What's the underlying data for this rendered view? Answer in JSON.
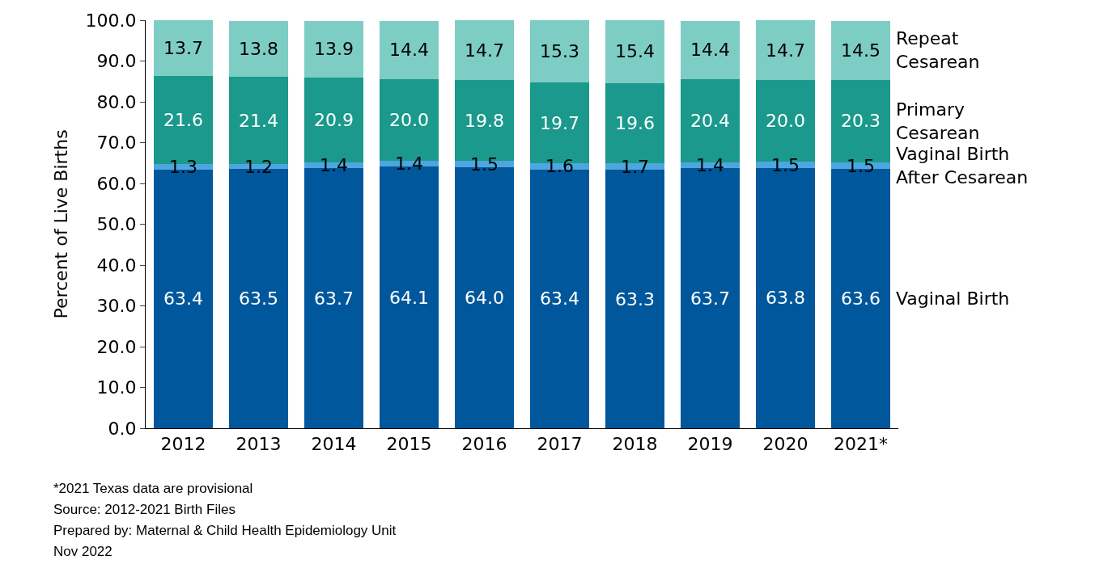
{
  "chart_data": {
    "type": "bar",
    "stacked": true,
    "ylabel": "Percent of Live Births",
    "categories": [
      "2012",
      "2013",
      "2014",
      "2015",
      "2016",
      "2017",
      "2018",
      "2019",
      "2020",
      "2021*"
    ],
    "series": [
      {
        "name": "Vaginal Birth",
        "color": "#00579b",
        "values": [
          63.4,
          63.5,
          63.7,
          64.1,
          64.0,
          63.4,
          63.3,
          63.7,
          63.8,
          63.6
        ],
        "value_labels": [
          "63.4",
          "63.5",
          "63.7",
          "64.1",
          "64.0",
          "63.4",
          "63.3",
          "63.7",
          "63.8",
          "63.6"
        ]
      },
      {
        "name": "Vaginal Birth After Cesarean",
        "color": "#4da6e0",
        "values": [
          1.3,
          1.2,
          1.4,
          1.4,
          1.5,
          1.6,
          1.7,
          1.4,
          1.5,
          1.5
        ],
        "value_labels": [
          "1.3",
          "1.2",
          "1.4",
          "1.4",
          "1.5",
          "1.6",
          "1.7",
          "1.4",
          "1.5",
          "1.5"
        ]
      },
      {
        "name": "Primary Cesarean",
        "color": "#1a998c",
        "values": [
          21.6,
          21.4,
          20.9,
          20.0,
          19.8,
          19.7,
          19.6,
          20.4,
          20.0,
          20.3
        ],
        "value_labels": [
          "21.6",
          "21.4",
          "20.9",
          "20.0",
          "19.8",
          "19.7",
          "19.6",
          "20.4",
          "20.0",
          "20.3"
        ]
      },
      {
        "name": "Repeat Cesarean",
        "color": "#7ecdc5",
        "values": [
          13.7,
          13.8,
          13.9,
          14.4,
          14.7,
          15.3,
          15.4,
          14.4,
          14.7,
          14.5
        ],
        "value_labels": [
          "13.7",
          "13.8",
          "13.9",
          "14.4",
          "14.7",
          "15.3",
          "15.4",
          "14.4",
          "14.7",
          "14.5"
        ]
      }
    ],
    "ylim": [
      0,
      100
    ],
    "yticks": [
      {
        "value": 0,
        "label": "0.0"
      },
      {
        "value": 10,
        "label": "10.0"
      },
      {
        "value": 20,
        "label": "20.0"
      },
      {
        "value": 30,
        "label": "30.0"
      },
      {
        "value": 40,
        "label": "40.0"
      },
      {
        "value": 50,
        "label": "50.0"
      },
      {
        "value": 60,
        "label": "60.0"
      },
      {
        "value": 70,
        "label": "70.0"
      },
      {
        "value": 80,
        "label": "80.0"
      },
      {
        "value": 90,
        "label": "90.0"
      },
      {
        "value": 100,
        "label": "100.0"
      }
    ],
    "annotations": [
      "*2021 Texas data are provisional",
      "Source: 2012-2021 Birth Files",
      "Prepared by: Maternal & Child Health Epidemiology Unit",
      "Nov 2022"
    ]
  }
}
